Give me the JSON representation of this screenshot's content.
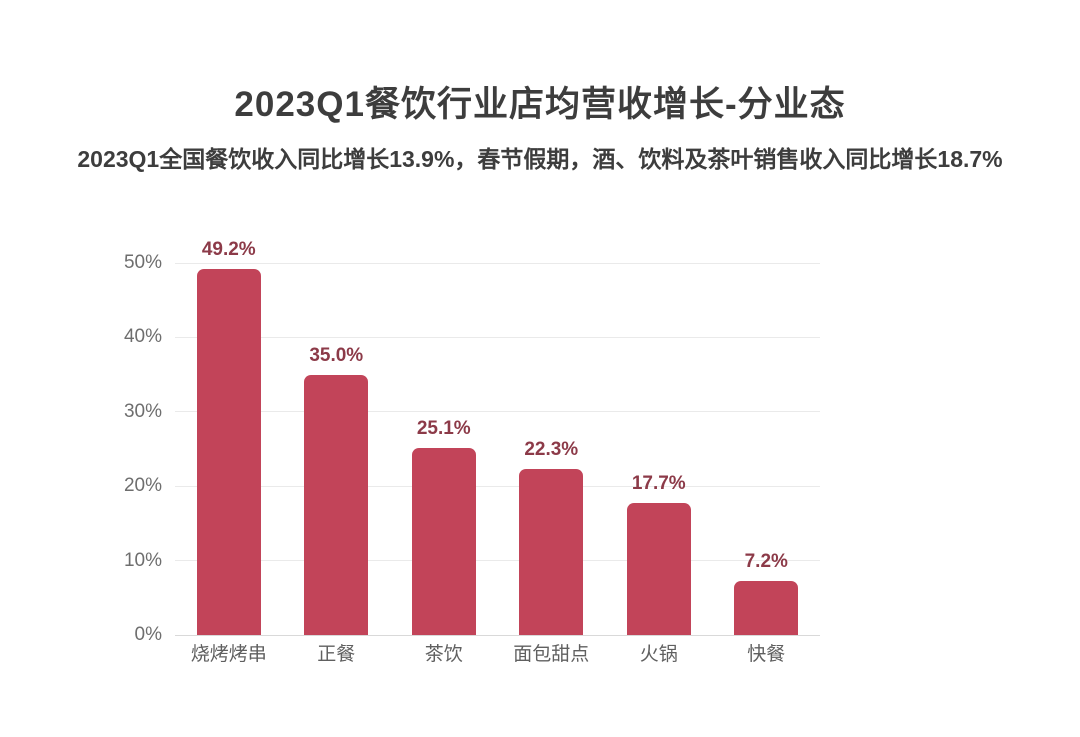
{
  "header": {
    "title": "2023Q1餐饮行业店均营收增长-分业态",
    "subtitle": "2023Q1全国餐饮收入同比增长13.9%，春节假期，酒、饮料及茶叶销售收入同比增长18.7%"
  },
  "chart_data": {
    "type": "bar",
    "title": "2023Q1餐饮行业店均营收增长-分业态",
    "subtitle": "2023Q1全国餐饮收入同比增长13.9%，春节假期，酒、饮料及茶叶销售收入同比增长18.7%",
    "categories": [
      "烧烤烤串",
      "正餐",
      "茶饮",
      "面包甜点",
      "火锅",
      "快餐"
    ],
    "values": [
      49.2,
      35.0,
      25.1,
      22.3,
      17.7,
      7.2
    ],
    "value_labels": [
      "49.2%",
      "35.0%",
      "25.1%",
      "22.3%",
      "17.7%",
      "7.2%"
    ],
    "xlabel": "",
    "ylabel": "",
    "ylim": [
      0,
      50
    ],
    "yticks": [
      0,
      10,
      20,
      30,
      40,
      50
    ],
    "ytick_labels": [
      "0%",
      "10%",
      "20%",
      "30%",
      "40%",
      "50%"
    ],
    "grid": true,
    "legend": "none"
  },
  "colors": {
    "bar_fill": "#c24459",
    "value_label": "#8c3a48",
    "title_text": "#3d3d3d",
    "axis_tick_text": "#6e6e6e",
    "category_text": "#606060",
    "gridline": "#eaeaea",
    "baseline": "#d9d9d9",
    "background": "#ffffff"
  }
}
